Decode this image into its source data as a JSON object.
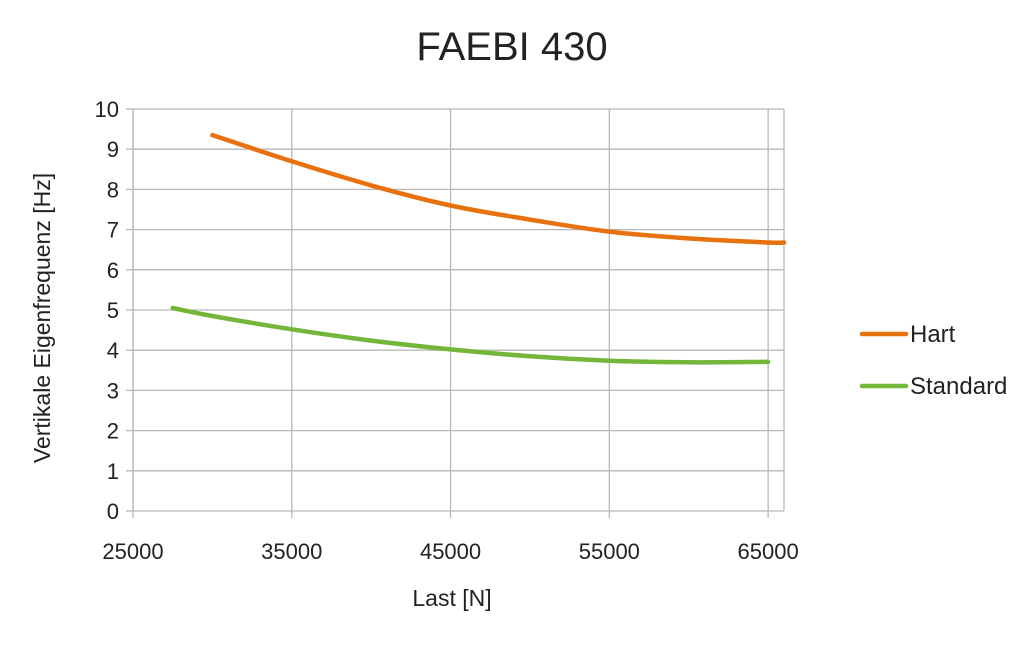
{
  "chart_data": {
    "type": "line",
    "title": "FAEBI 430",
    "xlabel": "Last [N]",
    "ylabel": "Vertikale Eigenfrequenz [Hz]",
    "xlim": [
      25000,
      66000
    ],
    "ylim": [
      0,
      10
    ],
    "x_ticks": [
      25000,
      35000,
      45000,
      55000,
      65000
    ],
    "y_ticks": [
      0,
      1,
      2,
      3,
      4,
      5,
      6,
      7,
      8,
      9,
      10
    ],
    "grid": true,
    "legend_position": "right",
    "series": [
      {
        "name": "Hart",
        "color": "#E8710F",
        "x": [
          30000,
          35000,
          40000,
          45000,
          50000,
          55000,
          60000,
          65000,
          66000
        ],
        "y": [
          9.35,
          8.7,
          8.1,
          7.6,
          7.25,
          6.95,
          6.78,
          6.68,
          6.68
        ]
      },
      {
        "name": "Standard",
        "color": "#73B63A",
        "x": [
          27500,
          30000,
          35000,
          40000,
          45000,
          50000,
          55000,
          60000,
          65000
        ],
        "y": [
          5.05,
          4.85,
          4.52,
          4.24,
          4.02,
          3.85,
          3.74,
          3.7,
          3.71
        ]
      }
    ]
  }
}
